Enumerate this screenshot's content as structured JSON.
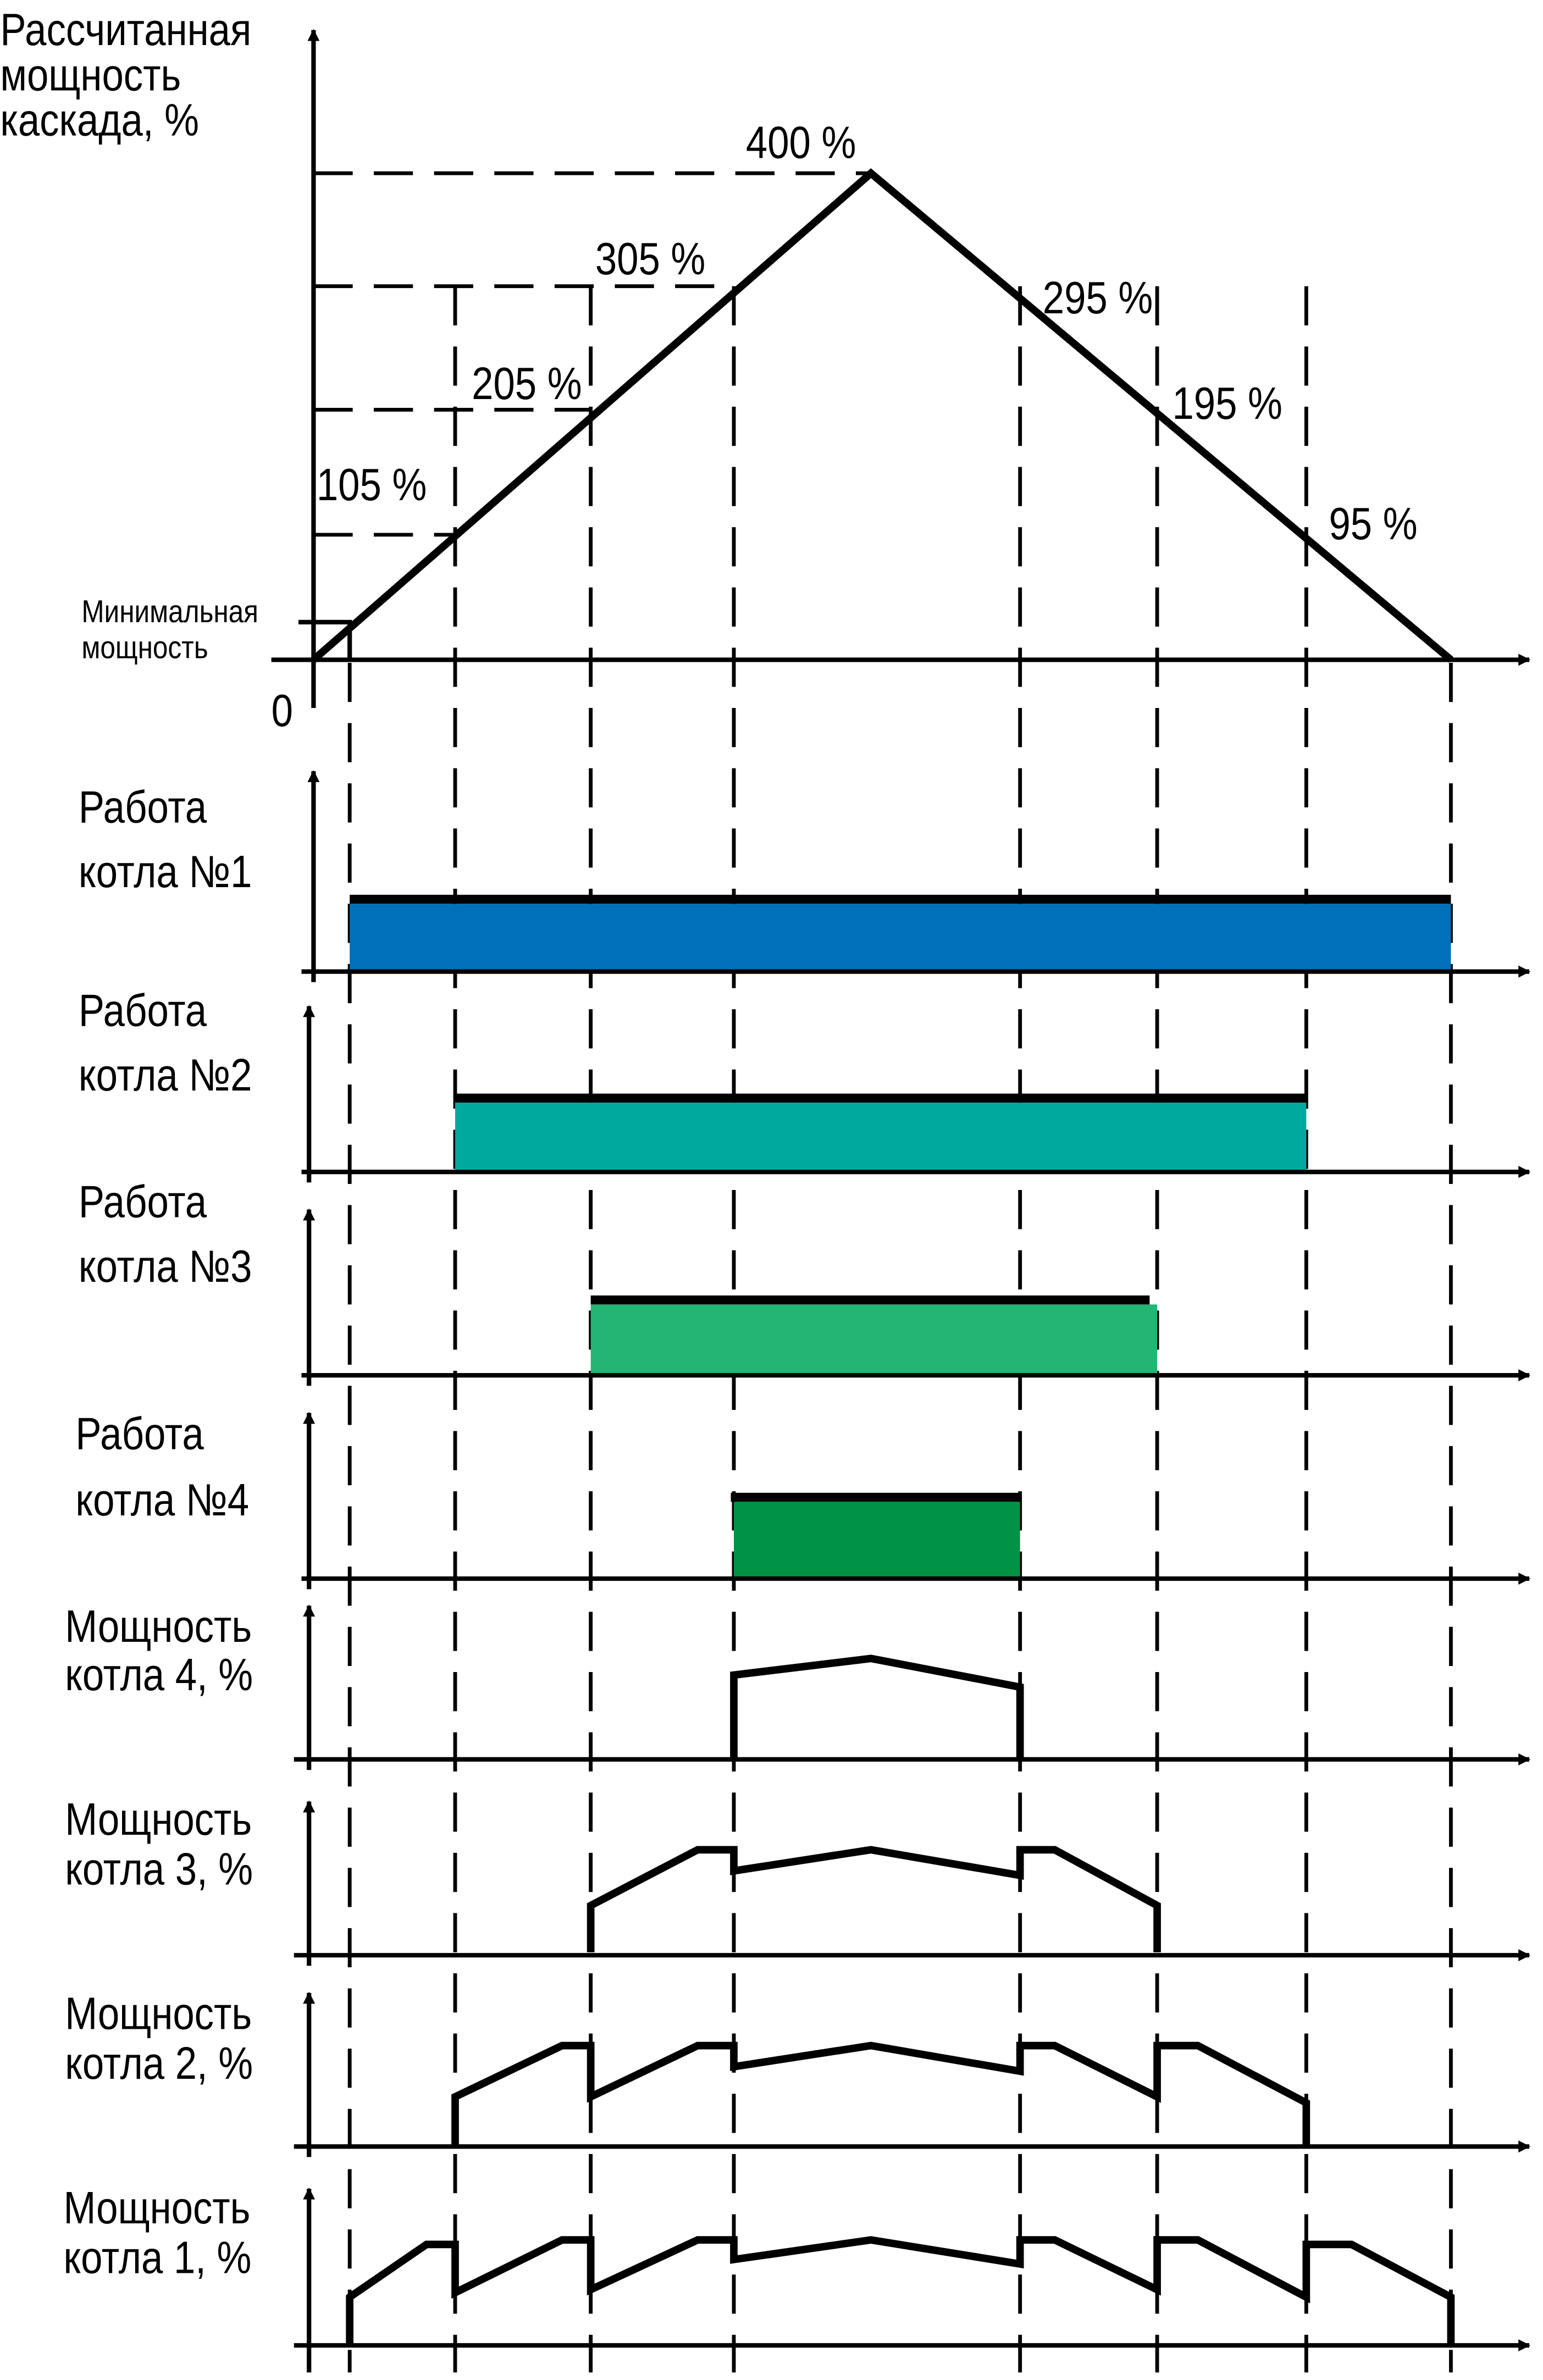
{
  "top_chart": {
    "y_label": [
      "Рассчитанная",
      "мощность",
      "каскада, %"
    ],
    "min_power_label": [
      "Минимальная",
      "мощность"
    ],
    "origin_label": "0",
    "ramp_up_labels": [
      "105 %",
      "205 %",
      "305 %",
      "400 %"
    ],
    "ramp_down_labels": [
      "295 %",
      "195 %",
      "95 %"
    ]
  },
  "boiler_work": [
    {
      "label": [
        "Работа",
        "котла №1"
      ],
      "color": "#0070BA"
    },
    {
      "label": [
        "Работа",
        "котла №2"
      ],
      "color": "#00A99D"
    },
    {
      "label": [
        "Работа",
        "котла №3"
      ],
      "color": "#23B574"
    },
    {
      "label": [
        "Работа",
        "котла №4"
      ],
      "color": "#009245"
    }
  ],
  "boiler_power": [
    {
      "label": [
        "Мощность",
        "котла 4, %"
      ]
    },
    {
      "label": [
        "Мощность",
        "котла 3, %"
      ]
    },
    {
      "label": [
        "Мощность",
        "котла 2, %"
      ]
    },
    {
      "label": [
        "Мощность",
        "котла 1, %"
      ]
    }
  ]
}
